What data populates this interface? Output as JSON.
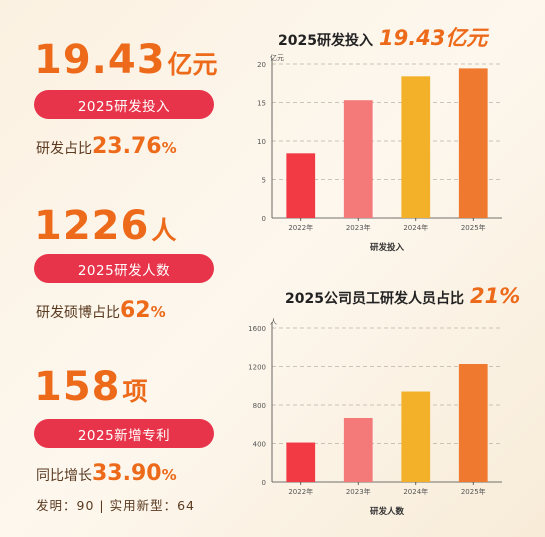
{
  "metrics": [
    {
      "value": "19.43",
      "unit": "亿元",
      "label": "2025研发投入",
      "sub_prefix": "研发占比",
      "sub_value": "23.76",
      "sub_suffix": "%"
    },
    {
      "value": "1226",
      "unit": "人",
      "label": "2025研发人数",
      "sub_prefix": "研发硕博占比",
      "sub_value": "62",
      "sub_suffix": "%"
    },
    {
      "value": "158",
      "unit": "项",
      "label": "2025新增专利",
      "sub_prefix": "同比增长",
      "sub_value": "33.90",
      "sub_suffix": "%",
      "note": "发明：90 | 实用新型：64"
    }
  ],
  "colors": {
    "accent": "#ec6a1a",
    "pill": "#e8344a",
    "bar1": "#f23a45",
    "bar2": "#f47a7a",
    "bar3": "#f2b129",
    "bar4": "#ef7a2f"
  },
  "chart_data": [
    {
      "type": "bar",
      "title": "2025研发投入",
      "title_highlight": "19.43亿元",
      "categories": [
        "2022年",
        "2023年",
        "2024年",
        "2025年"
      ],
      "values": [
        8.4,
        15.3,
        18.4,
        19.43
      ],
      "ylabel": "亿元",
      "xlabel": "研发投入",
      "ylim": [
        0,
        20
      ],
      "yticks": [
        "0",
        "5",
        "10",
        "15",
        "20"
      ],
      "grid": true
    },
    {
      "type": "bar",
      "title": "2025公司员工研发人员占比",
      "title_highlight": "21%",
      "categories": [
        "2022年",
        "2023年",
        "2024年",
        "2025年"
      ],
      "values": [
        410,
        665,
        940,
        1226
      ],
      "ylabel": "人",
      "xlabel": "研发人数",
      "ylim": [
        0,
        1600
      ],
      "yticks": [
        "0",
        "400",
        "800",
        "1200",
        "1600"
      ],
      "grid": true
    }
  ]
}
